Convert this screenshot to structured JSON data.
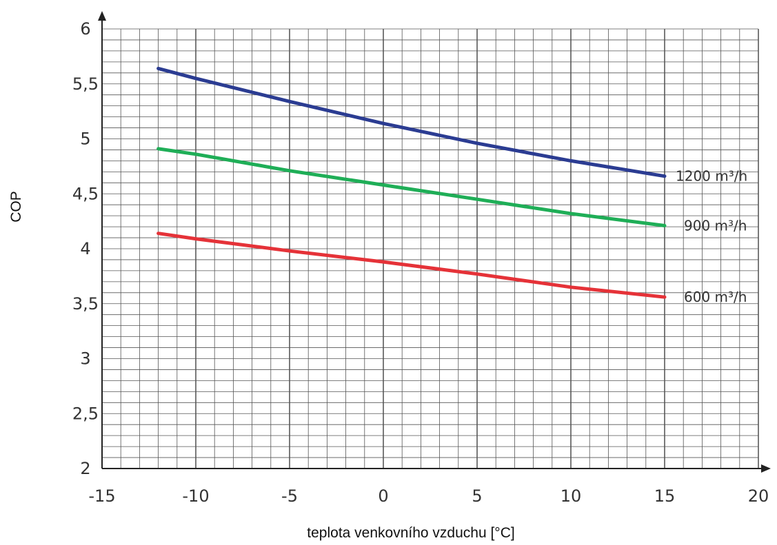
{
  "chart_data": {
    "type": "line",
    "xlabel": "teplota venkovního vzduchu [°C]",
    "ylabel": "COP",
    "xlim": [
      -15,
      20
    ],
    "ylim": [
      2,
      6
    ],
    "x_ticks": [
      "-15",
      "-10",
      "-5",
      "0",
      "5",
      "10",
      "15",
      "20"
    ],
    "y_ticks": [
      "2",
      "2,5",
      "3",
      "3,5",
      "4",
      "4,5",
      "5",
      "5,5",
      "6"
    ],
    "grid": true,
    "series": [
      {
        "name": "1200 m³/h",
        "color": "#2b3c92",
        "x": [
          -12,
          -10,
          -5,
          0,
          5,
          10,
          15
        ],
        "y": [
          5.64,
          5.55,
          5.34,
          5.14,
          4.96,
          4.8,
          4.66
        ]
      },
      {
        "name": "900 m³/h",
        "color": "#1fae57",
        "x": [
          -12,
          -10,
          -5,
          0,
          5,
          10,
          15
        ],
        "y": [
          4.91,
          4.86,
          4.71,
          4.58,
          4.45,
          4.32,
          4.21
        ]
      },
      {
        "name": "600 m³/h",
        "color": "#e53238",
        "x": [
          -12,
          -10,
          -5,
          0,
          5,
          10,
          15
        ],
        "y": [
          4.14,
          4.09,
          3.98,
          3.88,
          3.77,
          3.65,
          3.56
        ]
      }
    ]
  }
}
